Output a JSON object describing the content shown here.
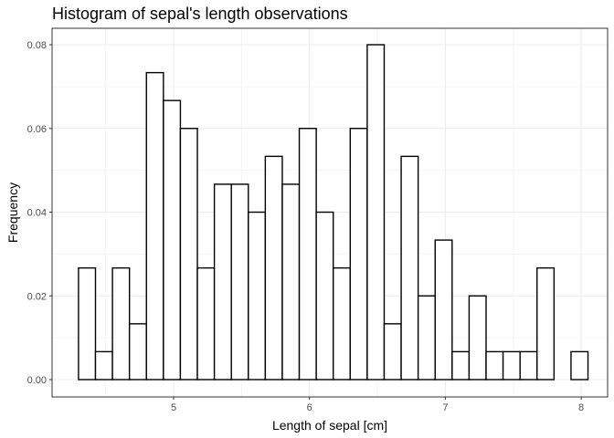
{
  "chart_data": {
    "type": "bar",
    "title": "Histogram of sepal's length observations",
    "xlabel": "Length of sepal [cm]",
    "ylabel": "Frequency",
    "xlim": [
      4.3,
      8.0
    ],
    "ylim": [
      0,
      0.08
    ],
    "grid": true,
    "x_ticks": [
      5,
      6,
      7,
      8
    ],
    "x_tick_labels": [
      "5",
      "6",
      "7",
      "8"
    ],
    "y_ticks": [
      0,
      0.02,
      0.04,
      0.06,
      0.08
    ],
    "y_tick_labels": [
      "0.00",
      "0.02",
      "0.04",
      "0.06",
      "0.08"
    ],
    "bin_width": 0.125,
    "bin_edges_start": 4.3,
    "values": [
      0.02667,
      0.00667,
      0.02667,
      0.01333,
      0.07333,
      0.06667,
      0.06,
      0.02667,
      0.04667,
      0.04667,
      0.04,
      0.05333,
      0.04667,
      0.06,
      0.04,
      0.02667,
      0.06,
      0.08,
      0.01333,
      0.05333,
      0.02,
      0.03333,
      0.00667,
      0.02,
      0.00667,
      0.00667,
      0.00667,
      0.02667,
      0,
      0.00667
    ],
    "colors": {
      "bar_fill": "#ffffff",
      "bar_stroke": "#000000",
      "panel_border": "#333333",
      "grid_major": "#ebebeb",
      "grid_minor": "#f5f5f5"
    }
  }
}
